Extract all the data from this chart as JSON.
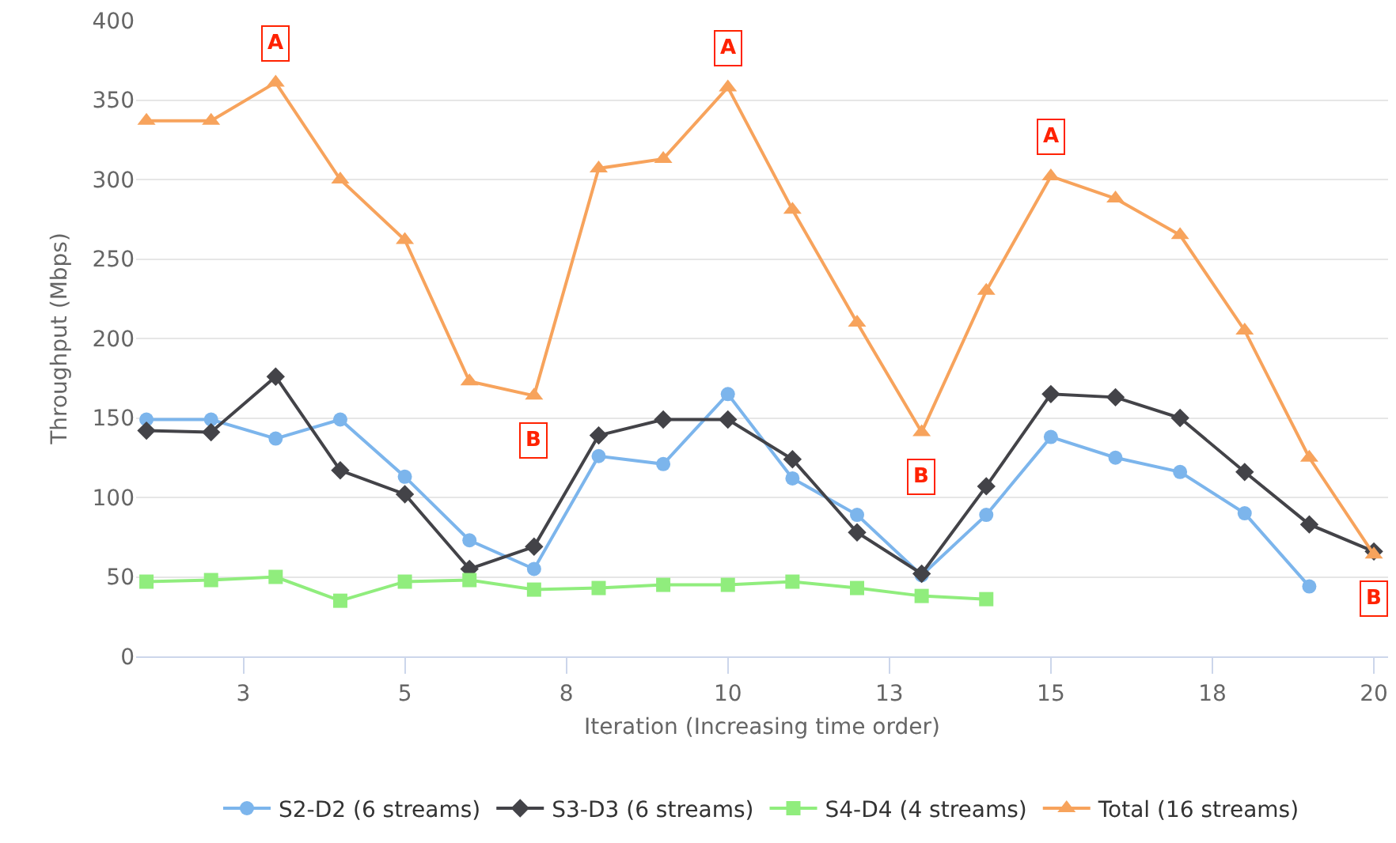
{
  "chart_data": {
    "type": "line",
    "xlabel": "Iteration (Increasing time order)",
    "ylabel": "Throughput (Mbps)",
    "x": [
      1,
      2,
      3,
      4,
      5,
      6,
      7,
      8,
      9,
      10,
      11,
      12,
      13,
      14,
      15,
      16,
      17,
      18,
      19,
      20
    ],
    "xlim": [
      0.84,
      20.22
    ],
    "xticks": [
      {
        "value": 2.5,
        "label": "3"
      },
      5,
      {
        "value": 7.5,
        "label": "8"
      },
      10,
      {
        "value": 12.5,
        "label": "13"
      },
      15,
      {
        "value": 17.5,
        "label": "18"
      },
      20
    ],
    "ylim": [
      0,
      400
    ],
    "yticks": [
      0,
      50,
      100,
      150,
      200,
      250,
      300,
      350,
      400
    ],
    "grid": "y",
    "legend": "bottom",
    "series": [
      {
        "name": "S2-D2 (6 streams)",
        "color": "#7cb5ec",
        "marker": "circle",
        "values": [
          149,
          149,
          137,
          149,
          113,
          73,
          55,
          126,
          121,
          165,
          112,
          89,
          51,
          89,
          138,
          125,
          116,
          90,
          44,
          null
        ]
      },
      {
        "name": "S3-D3 (6 streams)",
        "color": "#434348",
        "marker": "diamond",
        "values": [
          142,
          141,
          176,
          117,
          102,
          55,
          69,
          139,
          149,
          149,
          124,
          78,
          52,
          107,
          165,
          163,
          150,
          116,
          83,
          66
        ]
      },
      {
        "name": "S4-D4 (4 streams)",
        "color": "#90ed7d",
        "marker": "square",
        "values": [
          47,
          48,
          50,
          35,
          47,
          48,
          42,
          43,
          45,
          45,
          47,
          43,
          38,
          36,
          null,
          null,
          null,
          null,
          null,
          null
        ]
      },
      {
        "name": "Total (16 streams)",
        "color": "#f7a35c",
        "marker": "triangle",
        "values": [
          337,
          337,
          361,
          300,
          262,
          173,
          164,
          307,
          313,
          358,
          281,
          210,
          141,
          230,
          302,
          288,
          265,
          205,
          125,
          64
        ]
      }
    ],
    "annotations": [
      {
        "text": "A",
        "x": 3,
        "y": 361
      },
      {
        "text": "B",
        "x": 7,
        "y": 164
      },
      {
        "text": "A",
        "x": 10,
        "y": 358
      },
      {
        "text": "B",
        "x": 13,
        "y": 141
      },
      {
        "text": "A",
        "x": 15,
        "y": 302
      },
      {
        "text": "B",
        "x": 20,
        "y": 64
      }
    ]
  }
}
